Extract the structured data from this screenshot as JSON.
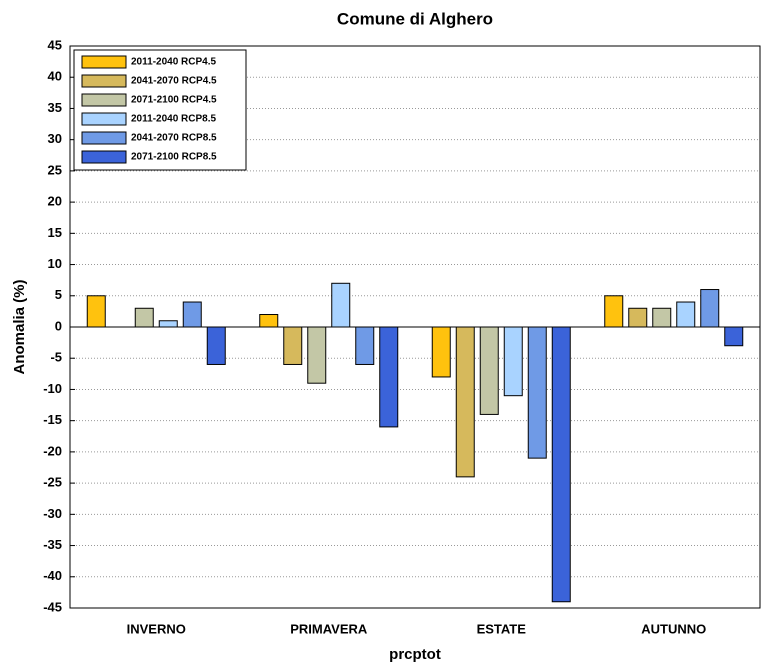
{
  "chart_data": {
    "type": "bar",
    "title": "Comune di Alghero",
    "x_label": "prcptot",
    "y_label": "Anomalia (%)",
    "categories": [
      "INVERNO",
      "PRIMAVERA",
      "ESTATE",
      "AUTUNNO"
    ],
    "series": [
      {
        "name": "2011-2040 RCP4.5",
        "color": "#ffc20e",
        "values": [
          5,
          2,
          -8,
          5
        ]
      },
      {
        "name": "2041-2070 RCP4.5",
        "color": "#d6b95c",
        "values": [
          0,
          -6,
          -24,
          3
        ]
      },
      {
        "name": "2071-2100 RCP4.5",
        "color": "#c3c7a6",
        "values": [
          3,
          -9,
          -14,
          3
        ]
      },
      {
        "name": "2011-2040 RCP8.5",
        "color": "#a9d3ff",
        "values": [
          1,
          7,
          -11,
          4
        ]
      },
      {
        "name": "2041-2070 RCP8.5",
        "color": "#6f9ae6",
        "values": [
          4,
          -6,
          -21,
          6
        ]
      },
      {
        "name": "2071-2100 RCP8.5",
        "color": "#3b63d9",
        "values": [
          -6,
          -16,
          -44,
          -3
        ]
      }
    ],
    "ylim": [
      -45,
      45
    ],
    "yticks": [
      -45,
      -40,
      -35,
      -30,
      -25,
      -20,
      -15,
      -10,
      -5,
      0,
      5,
      10,
      15,
      20,
      25,
      30,
      35,
      40,
      45
    ],
    "grid": true,
    "legend": "upper-left"
  }
}
